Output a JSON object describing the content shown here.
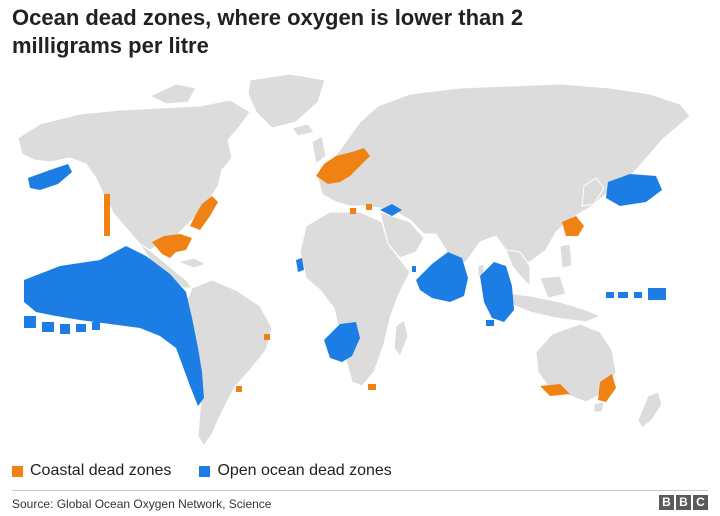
{
  "title": "Ocean dead zones, where oxygen is lower than 2 milligrams per litre",
  "legend": [
    {
      "label": "Coastal dead zones",
      "color": "#f08214"
    },
    {
      "label": "Open ocean dead zones",
      "color": "#1c7ee4"
    }
  ],
  "source": "Source: Global Ocean Oxygen Network, Science",
  "logo": [
    "B",
    "B",
    "C"
  ],
  "colors": {
    "land": "#dcdcdc",
    "coastline": "#ffffff",
    "coastal": "#f08214",
    "open_ocean": "#1c7ee4"
  }
}
